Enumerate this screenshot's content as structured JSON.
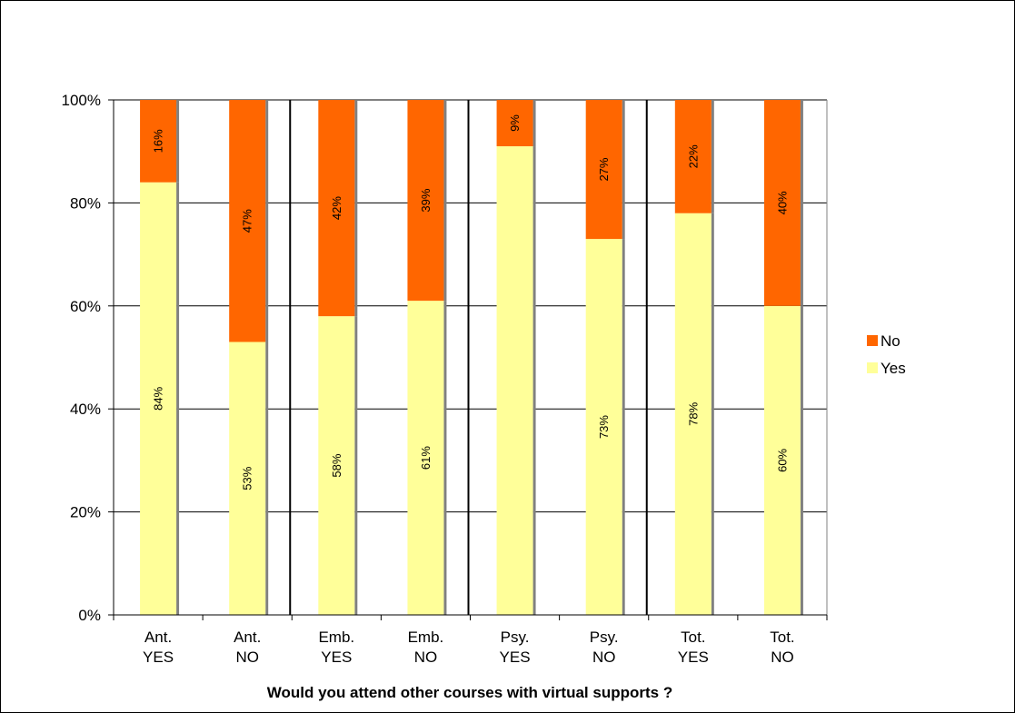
{
  "chart_data": {
    "type": "bar",
    "stacked": true,
    "categories": [
      [
        "Ant.",
        "YES"
      ],
      [
        "Ant.",
        "NO"
      ],
      [
        "Emb.",
        "YES"
      ],
      [
        "Emb.",
        "NO"
      ],
      [
        "Psy.",
        "YES"
      ],
      [
        "Psy.",
        "NO"
      ],
      [
        "Tot.",
        "YES"
      ],
      [
        "Tot.",
        "NO"
      ]
    ],
    "series": [
      {
        "name": "Yes",
        "color": "#FFFF99",
        "values": [
          84,
          53,
          58,
          61,
          91,
          73,
          78,
          60
        ],
        "labels": [
          "84%",
          "53%",
          "58%",
          "61%",
          "",
          "73%",
          "78%",
          "60%"
        ]
      },
      {
        "name": "No",
        "color": "#FF6600",
        "values": [
          16,
          47,
          42,
          39,
          9,
          27,
          22,
          40
        ],
        "labels": [
          "16%",
          "47%",
          "42%",
          "39%",
          "9%",
          "27%",
          "22%",
          "40%"
        ]
      }
    ],
    "title": "",
    "xlabel": "Would you attend other courses with virtual supports ?",
    "ylabel": "",
    "ylim": [
      0,
      100
    ],
    "yticks": [
      "0%",
      "20%",
      "40%",
      "60%",
      "80%",
      "100%"
    ],
    "grid": true,
    "legend_position": "right"
  }
}
